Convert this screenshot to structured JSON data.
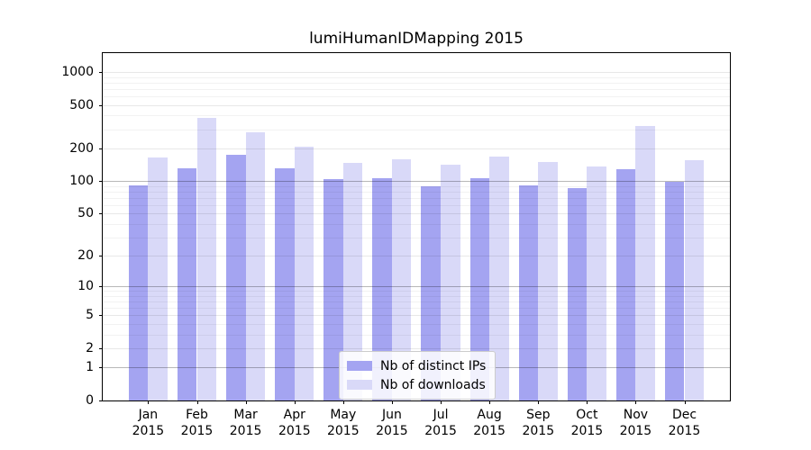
{
  "chart_data": {
    "type": "bar",
    "title": "lumiHumanIDMapping 2015",
    "xlabel": "",
    "ylabel": "",
    "scale": "log(value+1)",
    "grid": true,
    "legend_position": "inside lower center",
    "ylim": [
      0,
      1490
    ],
    "yticks": [
      0,
      1,
      2,
      5,
      10,
      20,
      50,
      100,
      200,
      500,
      1000
    ],
    "emphasized_gridlines": [
      1,
      10,
      100
    ],
    "minor_gridlines": [
      3,
      4,
      6,
      7,
      8,
      9,
      30,
      40,
      60,
      70,
      80,
      90,
      300,
      400,
      600,
      700,
      800,
      900
    ],
    "categories": [
      "Jan",
      "Feb",
      "Mar",
      "Apr",
      "May",
      "Jun",
      "Jul",
      "Aug",
      "Sep",
      "Oct",
      "Nov",
      "Dec"
    ],
    "year_label": "2015",
    "series": [
      {
        "name": "Nb of distinct IPs",
        "color": "#a4a4f1",
        "values": [
          92,
          131,
          175,
          131,
          105,
          107,
          89,
          107,
          91,
          86,
          130,
          98
        ]
      },
      {
        "name": "Nb of downloads",
        "color": "#d9d9f8",
        "values": [
          165,
          382,
          282,
          206,
          147,
          160,
          142,
          168,
          150,
          136,
          320,
          156
        ]
      }
    ]
  }
}
